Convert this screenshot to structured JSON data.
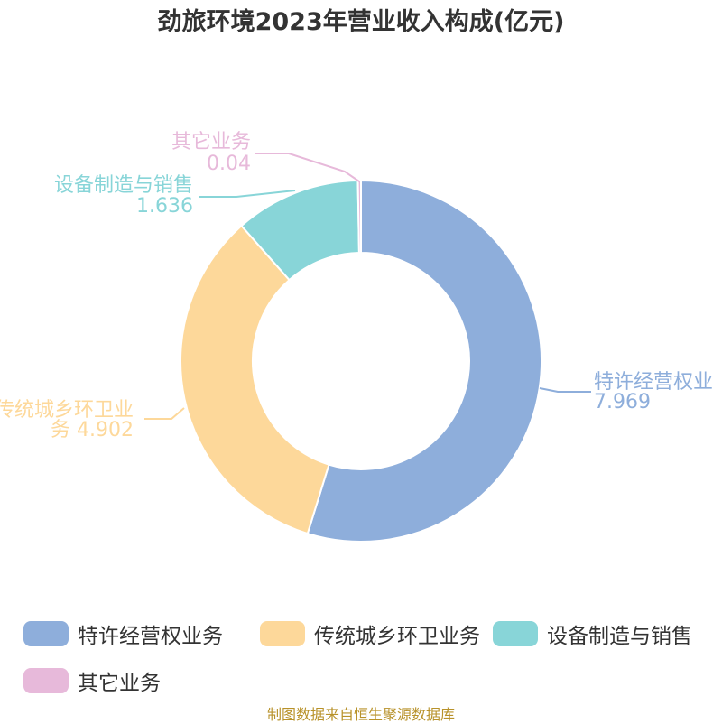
{
  "title": "劲旅环境2023年营业收入构成(亿元)",
  "source": "制图数据来自恒生聚源数据库",
  "chart_data": {
    "type": "pie",
    "variant": "donut",
    "title": "劲旅环境2023年营业收入构成(亿元)",
    "legend_position": "bottom",
    "label_lines": [
      "特许经营权业",
      "传统城乡环卫业",
      "设备制造与销售",
      "其它业务"
    ],
    "slices": [
      {
        "name": "特许经营权业务",
        "label": "特许经营权业",
        "value_label": "7.969",
        "value": 7.969,
        "color": "#8eaedb"
      },
      {
        "name": "传统城乡环卫业务",
        "label": "传统城乡环卫业",
        "value_label": "务 4.902",
        "value": 4.902,
        "color": "#fdd89a"
      },
      {
        "name": "设备制造与销售",
        "label": "设备制造与销售",
        "value_label": "1.636",
        "value": 1.636,
        "color": "#88d5d8"
      },
      {
        "name": "其它业务",
        "label": "其它业务",
        "value_label": "0.04",
        "value": 0.04,
        "color": "#e7b9da"
      }
    ]
  }
}
